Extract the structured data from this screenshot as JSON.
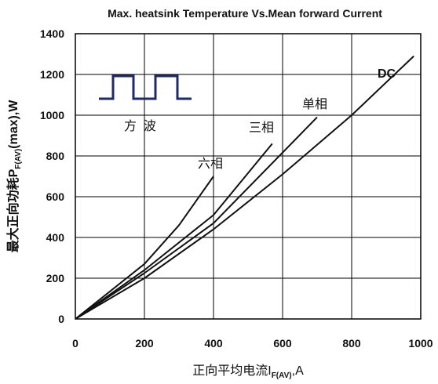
{
  "chart_data": {
    "type": "line",
    "title": "Max. heatsink Temperature Vs.Mean forward Current",
    "ylabel": {
      "prefix": "最大正向功耗P",
      "sub": "F(AV)",
      "suffix": "(max),W"
    },
    "xlabel": {
      "prefix": "正向平均电流I",
      "sub": "F(AV)",
      "suffix": ",A"
    },
    "xlim": [
      0,
      1000
    ],
    "ylim": [
      0,
      1400
    ],
    "xticks": [
      0,
      200,
      400,
      600,
      800,
      1000
    ],
    "yticks": [
      0,
      200,
      400,
      600,
      800,
      1000,
      1200,
      1400
    ],
    "xtick_labels": [
      "0",
      "200",
      "400",
      "600",
      "800",
      "1000"
    ],
    "ytick_labels": [
      "0",
      "200",
      "400",
      "600",
      "800",
      "1000",
      "1200",
      "1400"
    ],
    "grid": true,
    "inset_label": "方  波",
    "series": [
      {
        "name": "六相",
        "x": [
          0,
          200,
          300,
          400
        ],
        "y": [
          0,
          270,
          460,
          700
        ]
      },
      {
        "name": "三相",
        "x": [
          0,
          200,
          400,
          570
        ],
        "y": [
          0,
          240,
          510,
          860
        ]
      },
      {
        "name": "单相",
        "x": [
          0,
          200,
          400,
          700
        ],
        "y": [
          0,
          225,
          470,
          990
        ]
      },
      {
        "name": "DC",
        "x": [
          0,
          200,
          400,
          600,
          800,
          980
        ],
        "y": [
          0,
          200,
          440,
          710,
          1000,
          1290
        ]
      }
    ],
    "colors": {
      "line": "#111111",
      "inset": "#1f2a6b",
      "grid": "#000000"
    }
  }
}
